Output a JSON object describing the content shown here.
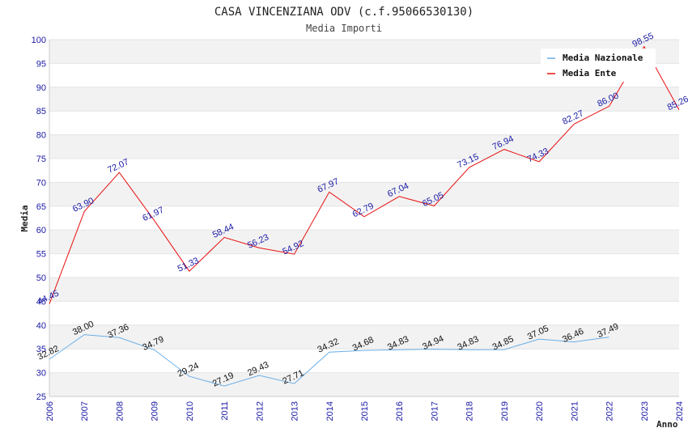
{
  "chart_data": {
    "type": "line",
    "title": "CASA VINCENZIANA ODV (c.f.95066530130)",
    "subtitle": "Media Importi",
    "xlabel": "Anno",
    "ylabel": "Media",
    "ylim": [
      25,
      100
    ],
    "yticks": [
      25,
      30,
      35,
      40,
      45,
      50,
      55,
      60,
      65,
      70,
      75,
      80,
      85,
      90,
      95,
      100
    ],
    "categories": [
      "2006",
      "2007",
      "2008",
      "2009",
      "2010",
      "2011",
      "2012",
      "2013",
      "2014",
      "2015",
      "2016",
      "2017",
      "2018",
      "2019",
      "2020",
      "2021",
      "2022",
      "2023",
      "2024"
    ],
    "series": [
      {
        "name": "Media Nazionale",
        "color": "#6aaee6",
        "values": [
          32.82,
          38.0,
          37.36,
          34.79,
          29.24,
          27.19,
          29.43,
          27.71,
          34.32,
          34.68,
          34.83,
          34.94,
          34.83,
          34.85,
          37.05,
          36.46,
          37.49,
          null,
          null
        ],
        "labels": [
          "32.82",
          "38.00",
          "37.36",
          "34.79",
          "29.24",
          "27.19",
          "29.43",
          "27.71",
          "34.32",
          "34.68",
          "34.83",
          "34.94",
          "34.83",
          "34.85",
          "37.05",
          "36.46",
          "37.49",
          null,
          null
        ]
      },
      {
        "name": "Media Ente",
        "color": "#e81010",
        "values": [
          44.45,
          63.9,
          72.07,
          61.97,
          51.33,
          58.44,
          56.23,
          54.92,
          67.97,
          62.79,
          67.04,
          65.05,
          73.15,
          76.94,
          74.33,
          82.27,
          86.0,
          98.55,
          85.26
        ],
        "labels": [
          "44.45",
          "63.90",
          "72.07",
          "61.97",
          "51.33",
          "58.44",
          "56.23",
          "54.92",
          "67.97",
          "62.79",
          "67.04",
          "65.05",
          "73.15",
          "76.94",
          "74.33",
          "82.27",
          "86.00",
          "98.55",
          "85.26"
        ]
      }
    ],
    "legend": {
      "position": "top-right"
    },
    "colors": {
      "band": "#f2f2f2",
      "grid": "#e4e4e4",
      "tick_text": "#1a1aa6"
    }
  }
}
